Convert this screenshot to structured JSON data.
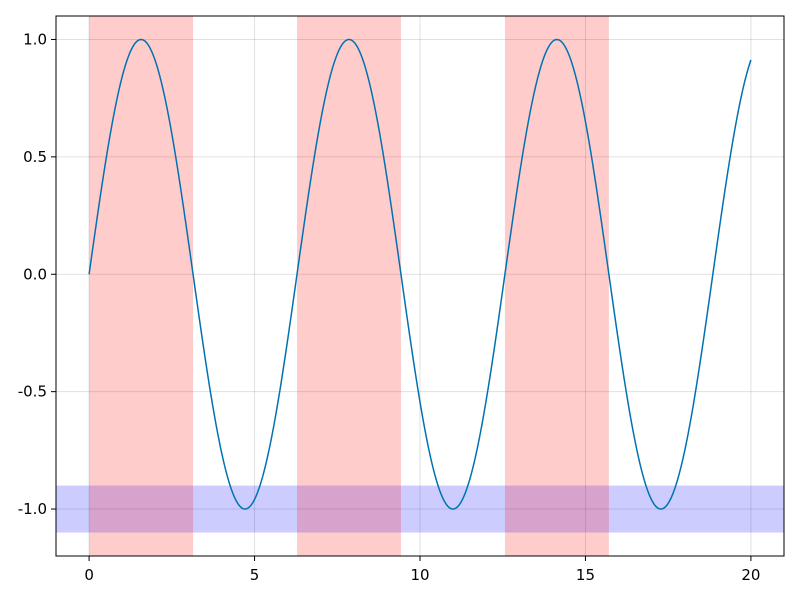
{
  "chart_data": {
    "type": "line",
    "title": "",
    "xlabel": "",
    "ylabel": "",
    "xlim": [
      -1,
      21
    ],
    "ylim": [
      -1.2,
      1.1
    ],
    "x_ticks": [
      0,
      5,
      10,
      15,
      20
    ],
    "x_tick_labels": [
      "0",
      "5",
      "10",
      "15",
      "20"
    ],
    "y_ticks": [
      -1.0,
      -0.5,
      0.0,
      0.5,
      1.0
    ],
    "y_tick_labels": [
      "-1.0",
      "-0.5",
      "0.0",
      "0.5",
      "1.0"
    ],
    "grid": true,
    "legend": "none",
    "series": [
      {
        "function": "sin(x)",
        "x_range": [
          0,
          20
        ],
        "color": "#0072b2"
      }
    ],
    "vertical_spans": [
      {
        "x": [
          0,
          3.14159
        ],
        "color": "#ff0000",
        "opacity": 0.2
      },
      {
        "x": [
          6.28319,
          9.42478
        ],
        "color": "#ff0000",
        "opacity": 0.2
      },
      {
        "x": [
          12.56637,
          15.70796
        ],
        "color": "#ff0000",
        "opacity": 0.2
      }
    ],
    "horizontal_spans": [
      {
        "y": [
          -1.1,
          -0.9
        ],
        "color": "#0000ff",
        "opacity": 0.2
      }
    ]
  }
}
